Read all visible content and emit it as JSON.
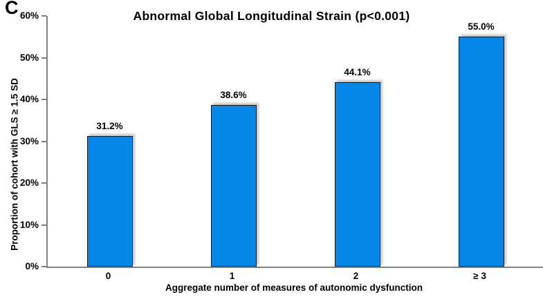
{
  "chart_data": {
    "type": "bar",
    "panel_label": "C",
    "title": "Abnormal Global Longitudinal Strain (p<0.001)",
    "categories": [
      "0",
      "1",
      "2",
      "≥ 3"
    ],
    "values": [
      31.2,
      38.6,
      44.1,
      55.0
    ],
    "data_labels": [
      "31.2%",
      "38.6%",
      "44.1%",
      "55.0%"
    ],
    "xlabel": "Aggregate number of measures of autonomic dysfunction",
    "ylabel": "Proportion of cohort with GLS ≥ 1.5 SD",
    "y_ticks": [
      "0%",
      "10%",
      "20%",
      "30%",
      "40%",
      "50%",
      "60%"
    ],
    "ylim": [
      0,
      60
    ],
    "grid": false,
    "legend": false,
    "colors": {
      "bar_fill": "#0587E8",
      "bar_border": "#161616",
      "axis": "#808080",
      "text": "#000000",
      "background": "#ffffff"
    }
  }
}
